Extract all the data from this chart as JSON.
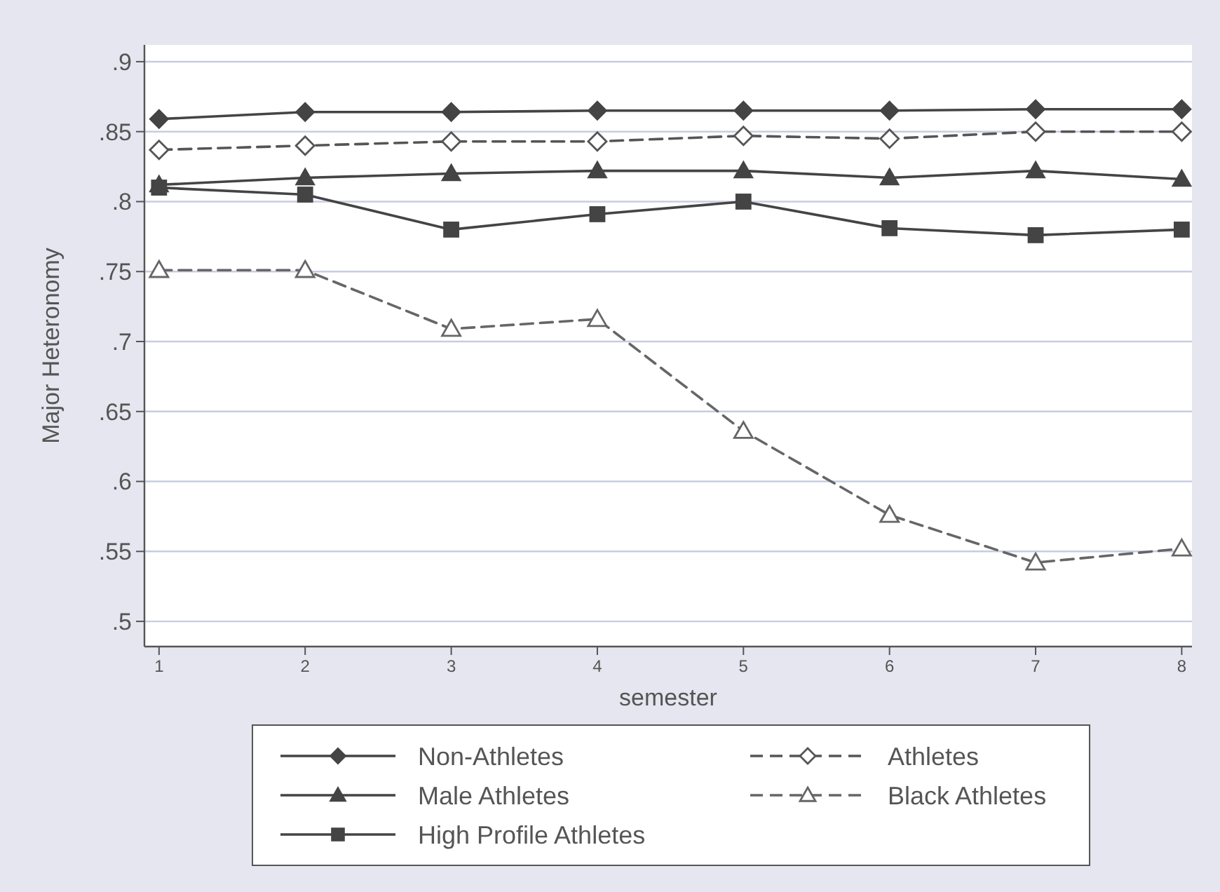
{
  "chart_data": {
    "type": "line",
    "xlabel": "semester",
    "ylabel": "Major Heteronomy",
    "x": [
      1,
      2,
      3,
      4,
      5,
      6,
      7,
      8
    ],
    "xlim": [
      0.9,
      8.07
    ],
    "xticks": [
      1,
      2,
      3,
      4,
      5,
      6,
      7,
      8
    ],
    "ylim": [
      0.482,
      0.912
    ],
    "yticks": [
      {
        "value": 0.5,
        "label": ".5"
      },
      {
        "value": 0.55,
        "label": ".55"
      },
      {
        "value": 0.6,
        "label": ".6"
      },
      {
        "value": 0.65,
        "label": ".65"
      },
      {
        "value": 0.7,
        "label": ".7"
      },
      {
        "value": 0.75,
        "label": ".75"
      },
      {
        "value": 0.8,
        "label": ".8"
      },
      {
        "value": 0.85,
        "label": ".85"
      },
      {
        "value": 0.9,
        "label": ".9"
      }
    ],
    "grid": "y",
    "legend": "bottom",
    "series": [
      {
        "name": "Non-Athletes",
        "color": "#444444",
        "marker": "diamond",
        "line_style": "solid",
        "values": [
          0.859,
          0.864,
          0.864,
          0.865,
          0.865,
          0.865,
          0.866,
          0.866
        ]
      },
      {
        "name": "Athletes",
        "color": "#555555",
        "marker": "diamond",
        "line_style": "dashed",
        "values": [
          0.837,
          0.84,
          0.843,
          0.843,
          0.847,
          0.845,
          0.85,
          0.85
        ]
      },
      {
        "name": "Male Athletes",
        "color": "#444444",
        "marker": "triangle",
        "line_style": "solid",
        "values": [
          0.812,
          0.817,
          0.82,
          0.822,
          0.822,
          0.817,
          0.822,
          0.816
        ]
      },
      {
        "name": "Black Athletes",
        "color": "#666666",
        "marker": "triangle",
        "line_style": "dashed",
        "values": [
          0.751,
          0.751,
          0.709,
          0.716,
          0.636,
          0.576,
          0.542,
          0.552
        ]
      },
      {
        "name": "High Profile Athletes",
        "color": "#444444",
        "marker": "square",
        "line_style": "solid",
        "values": [
          0.81,
          0.805,
          0.78,
          0.791,
          0.8,
          0.781,
          0.776,
          0.78
        ]
      }
    ]
  }
}
